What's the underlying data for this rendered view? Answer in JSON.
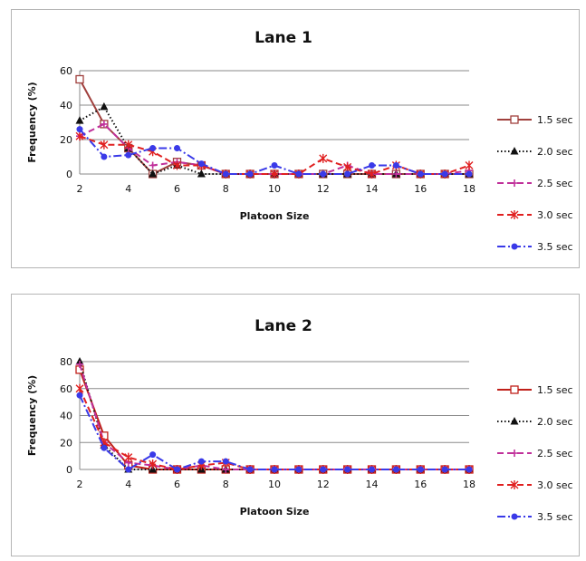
{
  "chart_data": [
    {
      "type": "line",
      "title": "Lane 1",
      "xlabel": "Platoon Size",
      "ylabel": "Frequency (%)",
      "x": [
        2,
        3,
        4,
        5,
        6,
        7,
        8,
        9,
        10,
        11,
        12,
        13,
        14,
        15,
        16,
        17,
        18
      ],
      "xticks": [
        2,
        4,
        6,
        8,
        10,
        12,
        14,
        16,
        18
      ],
      "xlim": [
        2,
        18
      ],
      "yticks": [
        0,
        20,
        40,
        60
      ],
      "ylim": [
        0,
        60
      ],
      "grid": "horizontal",
      "legend_position": "right",
      "series": [
        {
          "name": "1.5 sec",
          "color": "#a0403d",
          "dash": "solid",
          "marker": "open-square",
          "values": [
            55,
            29,
            15,
            0,
            7,
            5,
            0,
            0,
            0,
            0,
            0,
            0,
            0,
            0,
            0,
            0,
            0
          ]
        },
        {
          "name": "2.0 sec",
          "color": "#111111",
          "dash": "dotted",
          "marker": "triangle",
          "values": [
            31,
            39,
            15,
            0,
            5,
            0,
            0,
            0,
            0,
            0,
            0,
            0,
            0,
            0,
            0,
            0,
            0
          ]
        },
        {
          "name": "2.5 sec",
          "color": "#c0309a",
          "dash": "dashed",
          "marker": "plus",
          "values": [
            22,
            29,
            15,
            5,
            7,
            5,
            0,
            0,
            0,
            0,
            0,
            5,
            0,
            0,
            0,
            0,
            2
          ]
        },
        {
          "name": "3.0 sec",
          "color": "#e02020",
          "dash": "dashed",
          "marker": "star",
          "values": [
            22,
            17,
            17,
            13,
            5,
            5,
            0,
            0,
            0,
            0,
            9,
            4,
            0,
            5,
            0,
            0,
            5
          ]
        },
        {
          "name": "3.5 sec",
          "color": "#3a3ae8",
          "dash": "dashdot",
          "marker": "filled-circle",
          "values": [
            26,
            10,
            11,
            15,
            15,
            6,
            0,
            0,
            5,
            0,
            0,
            0,
            5,
            5,
            0,
            0,
            0
          ]
        }
      ]
    },
    {
      "type": "line",
      "title": "Lane 2",
      "xlabel": "Platoon Size",
      "ylabel": "Frequency (%)",
      "x": [
        2,
        3,
        4,
        5,
        6,
        7,
        8,
        9,
        10,
        11,
        12,
        13,
        14,
        15,
        16,
        17,
        18
      ],
      "xticks": [
        2,
        4,
        6,
        8,
        10,
        12,
        14,
        16,
        18
      ],
      "xlim": [
        2,
        18
      ],
      "yticks": [
        0,
        20,
        40,
        60,
        80
      ],
      "ylim": [
        0,
        80
      ],
      "grid": "horizontal",
      "legend_position": "right",
      "series": [
        {
          "name": "1.5 sec",
          "color": "#c0201a",
          "dash": "solid",
          "marker": "open-square",
          "values": [
            74,
            25,
            3,
            0,
            0,
            0,
            0,
            0,
            0,
            0,
            0,
            0,
            0,
            0,
            0,
            0,
            0
          ]
        },
        {
          "name": "2.0 sec",
          "color": "#111111",
          "dash": "dotted",
          "marker": "triangle",
          "values": [
            80,
            18,
            0,
            0,
            0,
            0,
            0,
            0,
            0,
            0,
            0,
            0,
            0,
            0,
            0,
            0,
            0
          ]
        },
        {
          "name": "2.5 sec",
          "color": "#c0309a",
          "dash": "dashed",
          "marker": "plus",
          "values": [
            78,
            20,
            5,
            3,
            0,
            3,
            0,
            0,
            0,
            0,
            0,
            0,
            0,
            0,
            0,
            0,
            0
          ]
        },
        {
          "name": "3.0 sec",
          "color": "#e02020",
          "dash": "dashed",
          "marker": "star",
          "values": [
            60,
            20,
            9,
            4,
            0,
            3,
            5,
            0,
            0,
            0,
            0,
            0,
            0,
            0,
            0,
            0,
            0
          ]
        },
        {
          "name": "3.5 sec",
          "color": "#3a3ae8",
          "dash": "dashdot",
          "marker": "filled-circle",
          "values": [
            55,
            16,
            0,
            11,
            0,
            6,
            6,
            0,
            0,
            0,
            0,
            0,
            0,
            0,
            0,
            0,
            0
          ]
        }
      ]
    }
  ]
}
